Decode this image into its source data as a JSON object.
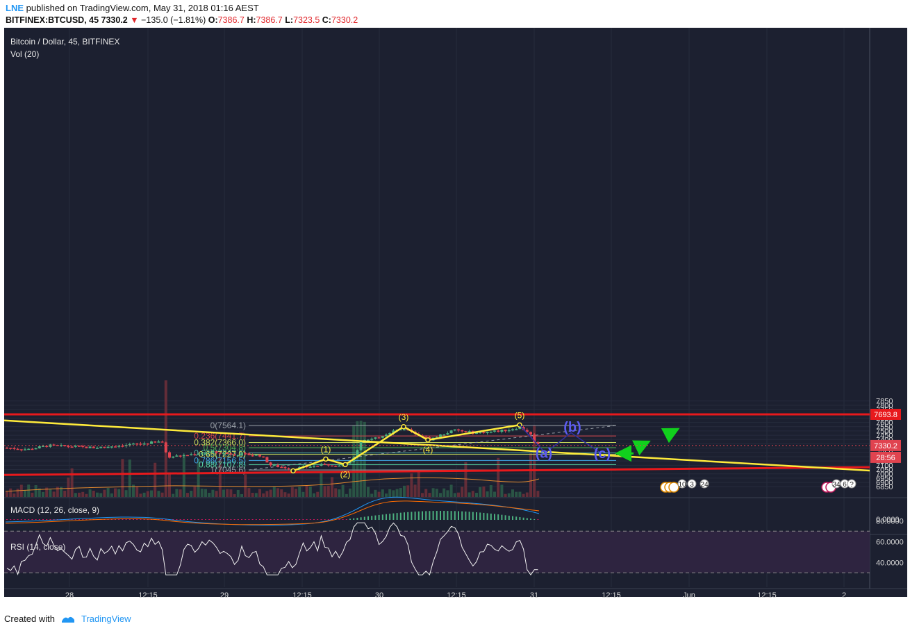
{
  "header": {
    "publisher": "LNE",
    "published_text": "published on TradingView.com, May 31, 2018 01:16 AEST",
    "symbol": "BITFINEX:BTCUSD, 45",
    "price": "7330.2",
    "change": "−135.0 (−1.81%)",
    "o_label": "O:",
    "o_value": "7386.7",
    "h_label": "H:",
    "h_value": "7386.7",
    "l_label": "L:",
    "l_value": "7323.5",
    "c_label": "C:",
    "c_value": "7330.2"
  },
  "legend": {
    "title": "Bitcoin / Dollar, 45, BITFINEX",
    "vol": "Vol (20)"
  },
  "macd_label": "MACD (12, 26, close, 9)",
  "rsi_label": "RSI (14, close)",
  "footer": {
    "created_with": "Created with",
    "brand": "TradingView"
  },
  "colors": {
    "background": "#1c2030",
    "up": "#4caf7f",
    "down": "#e0434f",
    "trendline": "#ffeb3b",
    "resistance": "#e8191c",
    "wave_abc": "#3030a0",
    "label_abc": "#5b5bf0",
    "arrows": "#11d01d"
  },
  "chart_data": {
    "type": "candlestick",
    "y_axis": {
      "ticks": [
        7850,
        7800,
        7750,
        7700,
        7650,
        7600,
        7550,
        7500,
        7450,
        7400,
        7350,
        7300,
        7250,
        7200,
        7150,
        7100,
        7050,
        7000,
        6950,
        6900,
        6850
      ],
      "ylim": [
        6820,
        7890
      ]
    },
    "x_axis": {
      "ticks": [
        "28",
        "12:15",
        "29",
        "12:15",
        "30",
        "12:15",
        "31",
        "12:15",
        "Jun",
        "12:15",
        "2"
      ]
    },
    "price_tags": [
      {
        "label": "7693.8",
        "value": 7693.8,
        "color": "#e8191c"
      },
      {
        "label": "7330.2",
        "value": 7330.2,
        "color": "#e0434f"
      },
      {
        "label": "28:56",
        "color": "#e0434f"
      }
    ],
    "fib_levels": [
      {
        "ratio": "0(7564.1)",
        "value": 7564.1,
        "color": "#9aa0a8"
      },
      {
        "ratio": "0.236(7441.7)",
        "value": 7441.7,
        "color": "#d9454a"
      },
      {
        "ratio": "0.382(7366.0)",
        "value": 7366.0,
        "color": "#c8d85a"
      },
      {
        "ratio": "0.5(7304.8)",
        "value": 7304.8,
        "color": "#4caf50"
      },
      {
        "ratio": "0.618(7243.6)",
        "value": 7243.6,
        "color": "#4bb7a6"
      },
      {
        "ratio": "0.65(7227.0)",
        "value": 7227.0,
        "color": "#c8d85a"
      },
      {
        "ratio": "0.786(7156.5)",
        "value": 7156.5,
        "color": "#3ea6e6"
      },
      {
        "ratio": "0.88(7107.8)",
        "value": 7107.8,
        "color": "#56d3a0"
      },
      {
        "ratio": "1(7045.6)",
        "value": 7045.6,
        "color": "#9aa0a8"
      }
    ],
    "wave_labels": [
      "(1)",
      "(2)",
      "(3)",
      "(4)",
      "(5)"
    ],
    "correction_labels": [
      "(a)",
      "(b)",
      "(c)"
    ],
    "resistance_level": 7693.8,
    "macd_ticks": [
      "0.0000"
    ],
    "rsi_ticks": [
      "80.0000",
      "60.0000",
      "40.0000"
    ],
    "event_badges": [
      "10",
      "3",
      "24",
      "34",
      "6",
      "?"
    ]
  }
}
